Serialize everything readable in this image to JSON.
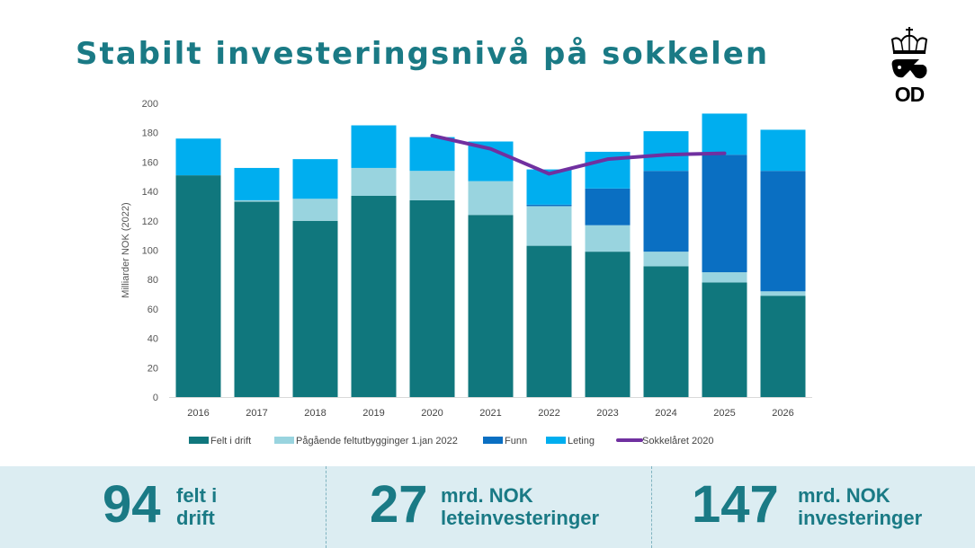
{
  "title": "Stabilt investeringsnivå på sokkelen",
  "logo": {
    "text": "OD"
  },
  "colors": {
    "title": "#1a7a85",
    "felt": "#10777d",
    "pagaende": "#99d4df",
    "funn": "#0a6fc2",
    "leting": "#00aeef",
    "line": "#7030a0",
    "footer_bg": "#dcedf2"
  },
  "chart_data": {
    "type": "bar",
    "stacked": true,
    "ylabel": "Milliarder NOK (2022)",
    "ylim": [
      0,
      200
    ],
    "yticks": [
      0,
      20,
      40,
      60,
      80,
      100,
      120,
      140,
      160,
      180,
      200
    ],
    "categories": [
      "2016",
      "2017",
      "2018",
      "2019",
      "2020",
      "2021",
      "2022",
      "2023",
      "2024",
      "2025",
      "2026"
    ],
    "series": [
      {
        "name": "Felt i drift",
        "color": "#10777d",
        "values": [
          151,
          133,
          120,
          137,
          134,
          124,
          103,
          99,
          89,
          78,
          69
        ]
      },
      {
        "name": "Pågående feltutbygginger 1.jan 2022",
        "color": "#99d4df",
        "values": [
          0,
          1,
          15,
          19,
          20,
          23,
          27,
          18,
          10,
          7,
          3
        ]
      },
      {
        "name": "Funn",
        "color": "#0a6fc2",
        "values": [
          0,
          0,
          0,
          0,
          0,
          0,
          1,
          25,
          55,
          80,
          82
        ]
      },
      {
        "name": "Leting",
        "color": "#00aeef",
        "values": [
          25,
          22,
          27,
          29,
          23,
          27,
          24,
          25,
          27,
          28,
          28
        ]
      }
    ],
    "line": {
      "name": "Sokkelåret 2020",
      "color": "#7030a0",
      "categories": [
        "2020",
        "2021",
        "2022",
        "2023",
        "2024",
        "2025"
      ],
      "values": [
        178,
        169,
        152,
        162,
        165,
        166
      ]
    },
    "legend_position": "bottom"
  },
  "stats": [
    {
      "value": "94",
      "label_line1": "felt i",
      "label_line2": "drift"
    },
    {
      "value": "27",
      "label_line1": "mrd. NOK",
      "label_line2": "leteinvesteringer"
    },
    {
      "value": "147",
      "label_line1": "mrd. NOK",
      "label_line2": "investeringer"
    }
  ]
}
